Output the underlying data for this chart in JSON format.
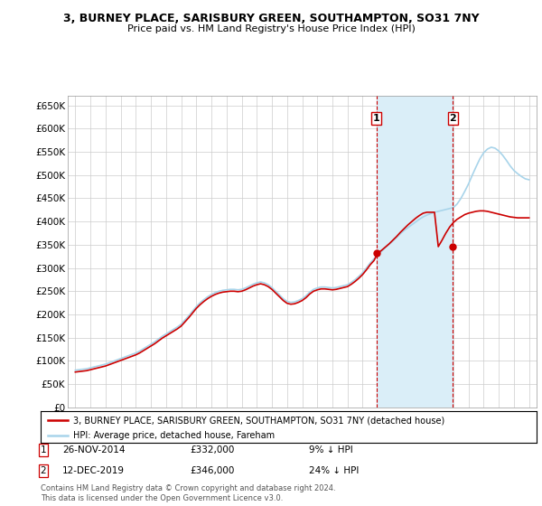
{
  "title": "3, BURNEY PLACE, SARISBURY GREEN, SOUTHAMPTON, SO31 7NY",
  "subtitle": "Price paid vs. HM Land Registry's House Price Index (HPI)",
  "ylim": [
    0,
    670000
  ],
  "yticks": [
    0,
    50000,
    100000,
    150000,
    200000,
    250000,
    300000,
    350000,
    400000,
    450000,
    500000,
    550000,
    600000,
    650000
  ],
  "ytick_labels": [
    "£0",
    "£50K",
    "£100K",
    "£150K",
    "£200K",
    "£250K",
    "£300K",
    "£350K",
    "£400K",
    "£450K",
    "£500K",
    "£550K",
    "£600K",
    "£650K"
  ],
  "background_color": "#ffffff",
  "grid_color": "#cccccc",
  "hpi_color": "#a8d4ea",
  "price_color": "#cc0000",
  "shade_color": "#daeef8",
  "sale1_date": 2014.9,
  "sale1_price": 332000,
  "sale2_date": 2019.95,
  "sale2_price": 346000,
  "legend_line1": "3, BURNEY PLACE, SARISBURY GREEN, SOUTHAMPTON, SO31 7NY (detached house)",
  "legend_line2": "HPI: Average price, detached house, Fareham",
  "footnote": "Contains HM Land Registry data © Crown copyright and database right 2024.\nThis data is licensed under the Open Government Licence v3.0.",
  "hpi_years": [
    1995.0,
    1995.25,
    1995.5,
    1995.75,
    1996.0,
    1996.25,
    1996.5,
    1996.75,
    1997.0,
    1997.25,
    1997.5,
    1997.75,
    1998.0,
    1998.25,
    1998.5,
    1998.75,
    1999.0,
    1999.25,
    1999.5,
    1999.75,
    2000.0,
    2000.25,
    2000.5,
    2000.75,
    2001.0,
    2001.25,
    2001.5,
    2001.75,
    2002.0,
    2002.25,
    2002.5,
    2002.75,
    2003.0,
    2003.25,
    2003.5,
    2003.75,
    2004.0,
    2004.25,
    2004.5,
    2004.75,
    2005.0,
    2005.25,
    2005.5,
    2005.75,
    2006.0,
    2006.25,
    2006.5,
    2006.75,
    2007.0,
    2007.25,
    2007.5,
    2007.75,
    2008.0,
    2008.25,
    2008.5,
    2008.75,
    2009.0,
    2009.25,
    2009.5,
    2009.75,
    2010.0,
    2010.25,
    2010.5,
    2010.75,
    2011.0,
    2011.25,
    2011.5,
    2011.75,
    2012.0,
    2012.25,
    2012.5,
    2012.75,
    2013.0,
    2013.25,
    2013.5,
    2013.75,
    2014.0,
    2014.25,
    2014.5,
    2014.75,
    2015.0,
    2015.25,
    2015.5,
    2015.75,
    2016.0,
    2016.25,
    2016.5,
    2016.75,
    2017.0,
    2017.25,
    2017.5,
    2017.75,
    2018.0,
    2018.25,
    2018.5,
    2018.75,
    2019.0,
    2019.25,
    2019.5,
    2019.75,
    2020.0,
    2020.25,
    2020.5,
    2020.75,
    2021.0,
    2021.25,
    2021.5,
    2021.75,
    2022.0,
    2022.25,
    2022.5,
    2022.75,
    2023.0,
    2023.25,
    2023.5,
    2023.75,
    2024.0,
    2024.25,
    2024.5,
    2024.75,
    2025.0
  ],
  "hpi_values": [
    80000,
    81000,
    82000,
    83000,
    85000,
    87000,
    89000,
    91000,
    93000,
    96000,
    99000,
    102000,
    105000,
    108000,
    111000,
    114000,
    117000,
    121000,
    126000,
    131000,
    136000,
    141000,
    147000,
    153000,
    158000,
    163000,
    168000,
    173000,
    179000,
    188000,
    197000,
    207000,
    217000,
    225000,
    232000,
    238000,
    243000,
    247000,
    250000,
    252000,
    253000,
    254000,
    254000,
    253000,
    254000,
    257000,
    261000,
    265000,
    268000,
    270000,
    268000,
    264000,
    258000,
    250000,
    242000,
    234000,
    228000,
    226000,
    227000,
    230000,
    234000,
    240000,
    248000,
    254000,
    257000,
    259000,
    259000,
    258000,
    257000,
    258000,
    260000,
    262000,
    264000,
    269000,
    275000,
    282000,
    290000,
    300000,
    311000,
    320000,
    328000,
    336000,
    344000,
    351000,
    358000,
    366000,
    374000,
    381000,
    387000,
    393000,
    399000,
    405000,
    410000,
    414000,
    417000,
    420000,
    422000,
    424000,
    426000,
    428000,
    430000,
    438000,
    450000,
    465000,
    481000,
    500000,
    518000,
    535000,
    548000,
    556000,
    560000,
    558000,
    552000,
    543000,
    532000,
    520000,
    510000,
    503000,
    497000,
    492000,
    490000
  ],
  "price_years": [
    1995.0,
    1995.25,
    1995.5,
    1995.75,
    1996.0,
    1996.25,
    1996.5,
    1996.75,
    1997.0,
    1997.25,
    1997.5,
    1997.75,
    1998.0,
    1998.25,
    1998.5,
    1998.75,
    1999.0,
    1999.25,
    1999.5,
    1999.75,
    2000.0,
    2000.25,
    2000.5,
    2000.75,
    2001.0,
    2001.25,
    2001.5,
    2001.75,
    2002.0,
    2002.25,
    2002.5,
    2002.75,
    2003.0,
    2003.25,
    2003.5,
    2003.75,
    2004.0,
    2004.25,
    2004.5,
    2004.75,
    2005.0,
    2005.25,
    2005.5,
    2005.75,
    2006.0,
    2006.25,
    2006.5,
    2006.75,
    2007.0,
    2007.25,
    2007.5,
    2007.75,
    2008.0,
    2008.25,
    2008.5,
    2008.75,
    2009.0,
    2009.25,
    2009.5,
    2009.75,
    2010.0,
    2010.25,
    2010.5,
    2010.75,
    2011.0,
    2011.25,
    2011.5,
    2011.75,
    2012.0,
    2012.25,
    2012.5,
    2012.75,
    2013.0,
    2013.25,
    2013.5,
    2013.75,
    2014.0,
    2014.25,
    2014.5,
    2014.75,
    2015.0,
    2015.25,
    2015.5,
    2015.75,
    2016.0,
    2016.25,
    2016.5,
    2016.75,
    2017.0,
    2017.25,
    2017.5,
    2017.75,
    2018.0,
    2018.25,
    2018.5,
    2018.75,
    2019.0,
    2019.25,
    2019.5,
    2019.75,
    2020.0,
    2020.25,
    2020.5,
    2020.75,
    2021.0,
    2021.25,
    2021.5,
    2021.75,
    2022.0,
    2022.25,
    2022.5,
    2022.75,
    2023.0,
    2023.25,
    2023.5,
    2023.75,
    2024.0,
    2024.25,
    2024.5,
    2024.75,
    2025.0
  ],
  "price_values": [
    76000,
    77000,
    78000,
    79000,
    81000,
    83000,
    85000,
    87000,
    89000,
    92000,
    95000,
    98000,
    101000,
    104000,
    107000,
    110000,
    113000,
    117000,
    122000,
    127000,
    132000,
    137000,
    143000,
    149000,
    154000,
    159000,
    164000,
    169000,
    175000,
    184000,
    193000,
    203000,
    213000,
    221000,
    228000,
    234000,
    239000,
    243000,
    246000,
    248000,
    249000,
    250000,
    250000,
    249000,
    250000,
    253000,
    257000,
    261000,
    264000,
    266000,
    264000,
    260000,
    254000,
    246000,
    238000,
    230000,
    224000,
    222000,
    223000,
    226000,
    230000,
    236000,
    244000,
    250000,
    253000,
    255000,
    255000,
    254000,
    253000,
    254000,
    256000,
    258000,
    260000,
    265000,
    271000,
    278000,
    286000,
    296000,
    307000,
    316000,
    332000,
    338000,
    345000,
    352000,
    360000,
    368000,
    377000,
    385000,
    393000,
    400000,
    407000,
    413000,
    418000,
    420000,
    420000,
    420000,
    346000,
    360000,
    375000,
    388000,
    398000,
    405000,
    410000,
    415000,
    418000,
    420000,
    422000,
    423000,
    423000,
    422000,
    420000,
    418000,
    416000,
    414000,
    412000,
    410000,
    409000,
    408000,
    408000,
    408000,
    408000
  ]
}
